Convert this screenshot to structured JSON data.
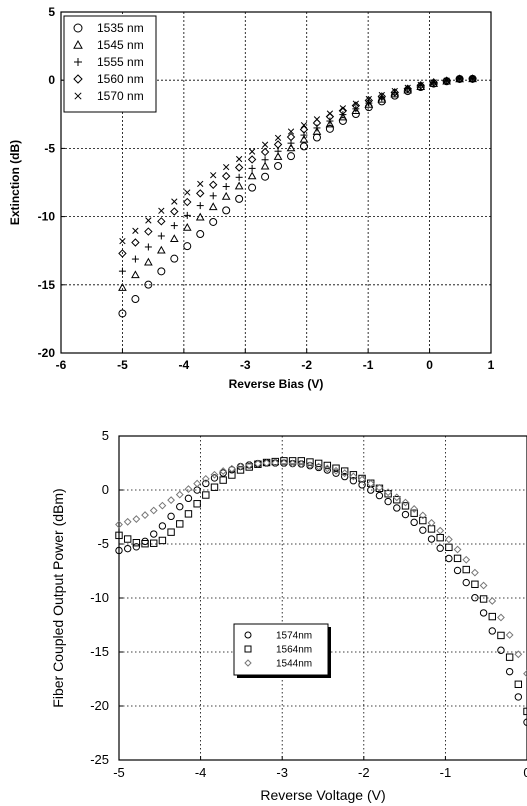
{
  "chart_data": [
    {
      "type": "scatter",
      "title": "",
      "xlabel": "Reverse Bias (V)",
      "ylabel": "Extinction (dB)",
      "xlim": [
        -6,
        1
      ],
      "ylim": [
        -20,
        5
      ],
      "xticks": [
        "-6",
        "-5",
        "-4",
        "-3",
        "-2",
        "-1",
        "0",
        "1"
      ],
      "yticks": [
        "5",
        "0",
        "-5",
        "-10",
        "-15",
        "-20"
      ],
      "grid": true,
      "legend_position": "top-left",
      "x": [
        -5.0,
        -4.5,
        -4.0,
        -3.5,
        -3.0,
        -2.5,
        -2.0,
        -1.5,
        -1.0,
        -0.5,
        0.0,
        0.5,
        0.7
      ],
      "series": [
        {
          "name": "1535 nm",
          "marker": "circle",
          "values": [
            -17.1,
            -14.6,
            -12.4,
            -10.3,
            -8.3,
            -6.4,
            -4.7,
            -3.2,
            -2.0,
            -1.0,
            -0.3,
            0.1,
            0.1
          ]
        },
        {
          "name": "1545 nm",
          "marker": "triangle",
          "values": [
            -15.2,
            -13.0,
            -11.0,
            -9.2,
            -7.4,
            -5.7,
            -4.2,
            -2.9,
            -1.8,
            -0.9,
            -0.3,
            0.1,
            0.1
          ]
        },
        {
          "name": "1555 nm",
          "marker": "plus",
          "values": [
            -14.0,
            -11.9,
            -10.1,
            -8.4,
            -6.8,
            -5.3,
            -3.9,
            -2.7,
            -1.7,
            -0.8,
            -0.2,
            0.1,
            0.1
          ]
        },
        {
          "name": "1560 nm",
          "marker": "diamond",
          "values": [
            -12.7,
            -10.8,
            -9.1,
            -7.6,
            -6.1,
            -4.8,
            -3.5,
            -2.4,
            -1.5,
            -0.8,
            -0.2,
            0.1,
            0.1
          ]
        },
        {
          "name": "1570 nm",
          "marker": "x",
          "values": [
            -11.8,
            -10.0,
            -8.4,
            -6.9,
            -5.5,
            -4.3,
            -3.2,
            -2.2,
            -1.4,
            -0.7,
            -0.2,
            0.1,
            0.1
          ]
        }
      ]
    },
    {
      "type": "scatter",
      "title": "",
      "xlabel": "Reverse Voltage (V)",
      "ylabel": "Fiber Coupled Output Power (dBm)",
      "xlim": [
        -5,
        0
      ],
      "ylim": [
        -25,
        5
      ],
      "xticks": [
        "-5",
        "-4",
        "-3",
        "-2",
        "-1",
        "0"
      ],
      "yticks": [
        "5",
        "0",
        "-5",
        "-10",
        "-15",
        "-20",
        "-25"
      ],
      "grid": true,
      "legend_position": "center-left",
      "x": [
        -5.0,
        -4.75,
        -4.5,
        -4.25,
        -4.0,
        -3.75,
        -3.5,
        -3.25,
        -3.0,
        -2.75,
        -2.5,
        -2.25,
        -2.0,
        -1.75,
        -1.5,
        -1.25,
        -1.0,
        -0.75,
        -0.5,
        -0.25,
        0.0
      ],
      "series": [
        {
          "name": "1574nm",
          "marker": "circle",
          "values": [
            -5.6,
            -5.2,
            -3.6,
            -1.5,
            0.3,
            1.5,
            2.2,
            2.5,
            2.5,
            2.4,
            2.0,
            1.3,
            0.4,
            -0.8,
            -2.2,
            -3.9,
            -5.9,
            -8.5,
            -11.8,
            -16.0,
            -21.5
          ]
        },
        {
          "name": "1564nm",
          "marker": "square",
          "values": [
            -4.2,
            -5.0,
            -4.9,
            -3.1,
            -0.9,
            0.8,
            1.9,
            2.5,
            2.7,
            2.7,
            2.4,
            1.8,
            1.0,
            -0.1,
            -1.4,
            -3.0,
            -4.9,
            -7.3,
            -10.5,
            -14.6,
            -20.5
          ]
        },
        {
          "name": "1544nm",
          "marker": "diamond",
          "values": [
            -3.2,
            -2.6,
            -1.6,
            -0.4,
            0.8,
            1.7,
            2.2,
            2.5,
            2.5,
            2.4,
            2.1,
            1.6,
            0.9,
            0.0,
            -1.1,
            -2.5,
            -4.2,
            -6.4,
            -9.2,
            -12.8,
            -17.0
          ]
        }
      ]
    }
  ]
}
